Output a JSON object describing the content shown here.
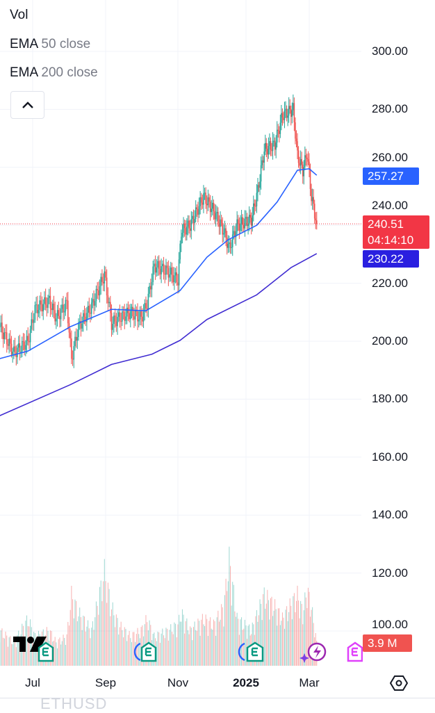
{
  "legend": {
    "vol": "Vol",
    "ema50": {
      "name": "EMA",
      "params": "50 close"
    },
    "ema200": {
      "name": "EMA",
      "params": "200 close"
    }
  },
  "price_axis_labels": [
    "300.00",
    "280.00",
    "260.00",
    "240.00",
    "220.00",
    "200.00",
    "180.00",
    "160.00",
    "140.00",
    "120.00",
    "100.00"
  ],
  "tags": {
    "ema50": {
      "value": "257.27",
      "color": "#2962ff"
    },
    "last_price": {
      "value": "240.51",
      "countdown": "04:14:10",
      "color": "#f23645"
    },
    "ema200": {
      "value": "230.22",
      "color": "#2a1fe0"
    },
    "volume": {
      "value": "3.9 M",
      "color": "#f05350"
    }
  },
  "time_axis_labels": [
    "Jul",
    "Sep",
    "Nov",
    "2025",
    "Mar"
  ],
  "symbol": "ETHUSD",
  "colors": {
    "up": "#26a69a",
    "down": "#ef5350",
    "ema50": "#2962ff",
    "ema200": "#3f2bd1"
  },
  "icons": [
    "tradingview-logo",
    "earnings-icon",
    "earnings-icon",
    "earnings-icon",
    "lightning-icon",
    "earnings-icon",
    "settings-hexagon-icon",
    "chevron-up-icon"
  ],
  "chart_data": {
    "type": "candlestick",
    "ylim": [
      90,
      305
    ],
    "grid": true,
    "x_ticks": [
      "Jul",
      "Sep",
      "Nov",
      "2025",
      "Mar"
    ],
    "closes": [
      [
        "2024-06-03",
        205
      ],
      [
        "2024-06-15",
        196
      ],
      [
        "2024-06-27",
        200
      ],
      [
        "2024-07-03",
        211
      ],
      [
        "2024-07-15",
        214
      ],
      [
        "2024-07-21",
        208
      ],
      [
        "2024-07-30",
        213
      ],
      [
        "2024-08-03",
        194
      ],
      [
        "2024-08-09",
        205
      ],
      [
        "2024-08-20",
        212
      ],
      [
        "2024-08-31",
        223
      ],
      [
        "2024-09-06",
        206
      ],
      [
        "2024-09-12",
        208
      ],
      [
        "2024-09-22",
        210
      ],
      [
        "2024-10-01",
        208
      ],
      [
        "2024-10-06",
        213
      ],
      [
        "2024-10-12",
        226
      ],
      [
        "2024-10-24",
        224
      ],
      [
        "2024-11-01",
        221
      ],
      [
        "2024-11-04",
        238
      ],
      [
        "2024-11-12",
        240
      ],
      [
        "2024-11-24",
        250
      ],
      [
        "2024-12-03",
        245
      ],
      [
        "2024-12-12",
        238
      ],
      [
        "2024-12-17",
        232
      ],
      [
        "2024-12-24",
        240
      ],
      [
        "2025-01-06",
        242
      ],
      [
        "2025-01-12",
        252
      ],
      [
        "2025-01-18",
        266
      ],
      [
        "2025-01-28",
        268
      ],
      [
        "2025-02-04",
        278
      ],
      [
        "2025-02-14",
        280
      ],
      [
        "2025-02-18",
        264
      ],
      [
        "2025-02-23",
        259
      ],
      [
        "2025-02-27",
        265
      ],
      [
        "2025-03-03",
        250
      ],
      [
        "2025-03-08",
        240.51
      ]
    ],
    "volume_m": [
      6,
      4,
      8,
      5,
      6,
      4,
      5,
      12,
      9,
      6,
      16,
      10,
      7,
      5,
      6,
      8,
      5,
      6,
      7,
      9,
      6,
      8,
      7,
      10,
      18,
      8,
      6,
      9,
      12,
      10,
      8,
      11,
      12,
      9,
      13,
      10,
      3.9
    ],
    "ema50": [
      [
        "2024-06-03",
        194
      ],
      [
        "2024-06-27",
        196.6
      ],
      [
        "2024-08-02",
        205
      ],
      [
        "2024-09-06",
        211
      ],
      [
        "2024-10-05",
        210.5
      ],
      [
        "2024-11-03",
        217.5
      ],
      [
        "2024-11-27",
        229
      ],
      [
        "2024-12-16",
        235
      ],
      [
        "2025-01-11",
        240
      ],
      [
        "2025-01-30",
        248
      ],
      [
        "2025-02-18",
        259
      ],
      [
        "2025-03-01",
        259.5
      ],
      [
        "2025-03-08",
        257.27
      ]
    ],
    "ema200": [
      [
        "2024-06-03",
        174.3
      ],
      [
        "2024-08-02",
        185
      ],
      [
        "2024-09-06",
        192
      ],
      [
        "2024-10-10",
        195.5
      ],
      [
        "2024-11-03",
        200.3
      ],
      [
        "2024-11-27",
        207.5
      ],
      [
        "2025-01-11",
        216
      ],
      [
        "2025-02-12",
        225.4
      ],
      [
        "2025-03-08",
        230.22
      ]
    ]
  }
}
